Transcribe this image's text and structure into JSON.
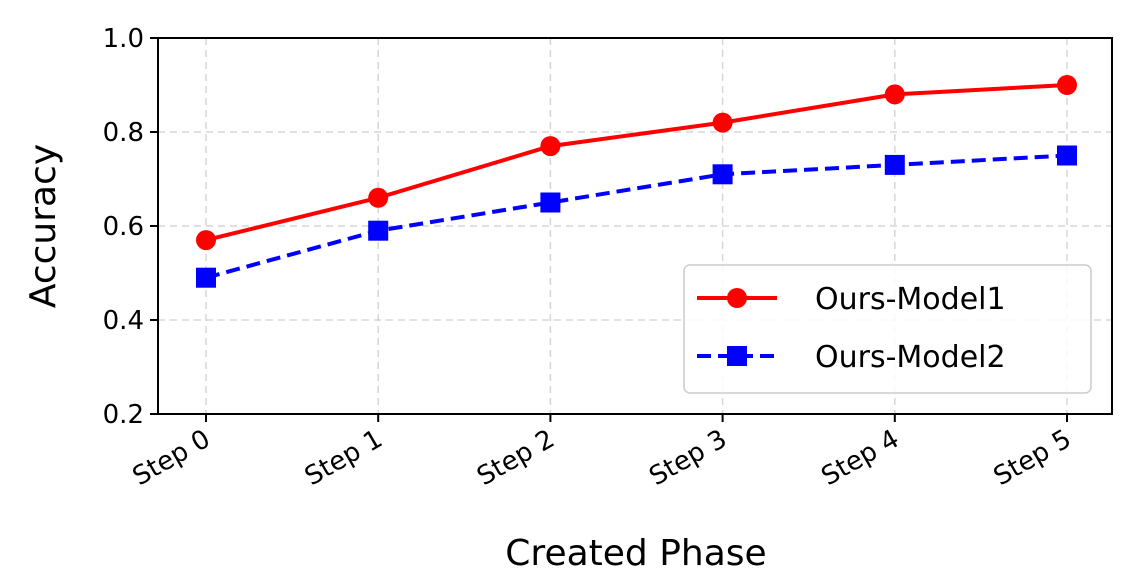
{
  "chart_data": {
    "type": "line",
    "categories": [
      "Step 0",
      "Step 1",
      "Step 2",
      "Step 3",
      "Step 4",
      "Step 5"
    ],
    "series": [
      {
        "name": "Ours-Model1",
        "values": [
          0.57,
          0.66,
          0.77,
          0.82,
          0.88,
          0.9
        ],
        "color": "#ff0000",
        "marker": "circle",
        "linestyle": "solid"
      },
      {
        "name": "Ours-Model2",
        "values": [
          0.49,
          0.59,
          0.65,
          0.71,
          0.73,
          0.75
        ],
        "color": "#0000ff",
        "marker": "square",
        "linestyle": "dashed"
      }
    ],
    "xlabel": "Created Phase",
    "ylabel": "Accuracy",
    "ylim": [
      0.2,
      1.0
    ],
    "yticks": [
      "0.2",
      "0.4",
      "0.6",
      "0.8",
      "1.0"
    ],
    "grid": true,
    "legend_position": "lower-right"
  }
}
